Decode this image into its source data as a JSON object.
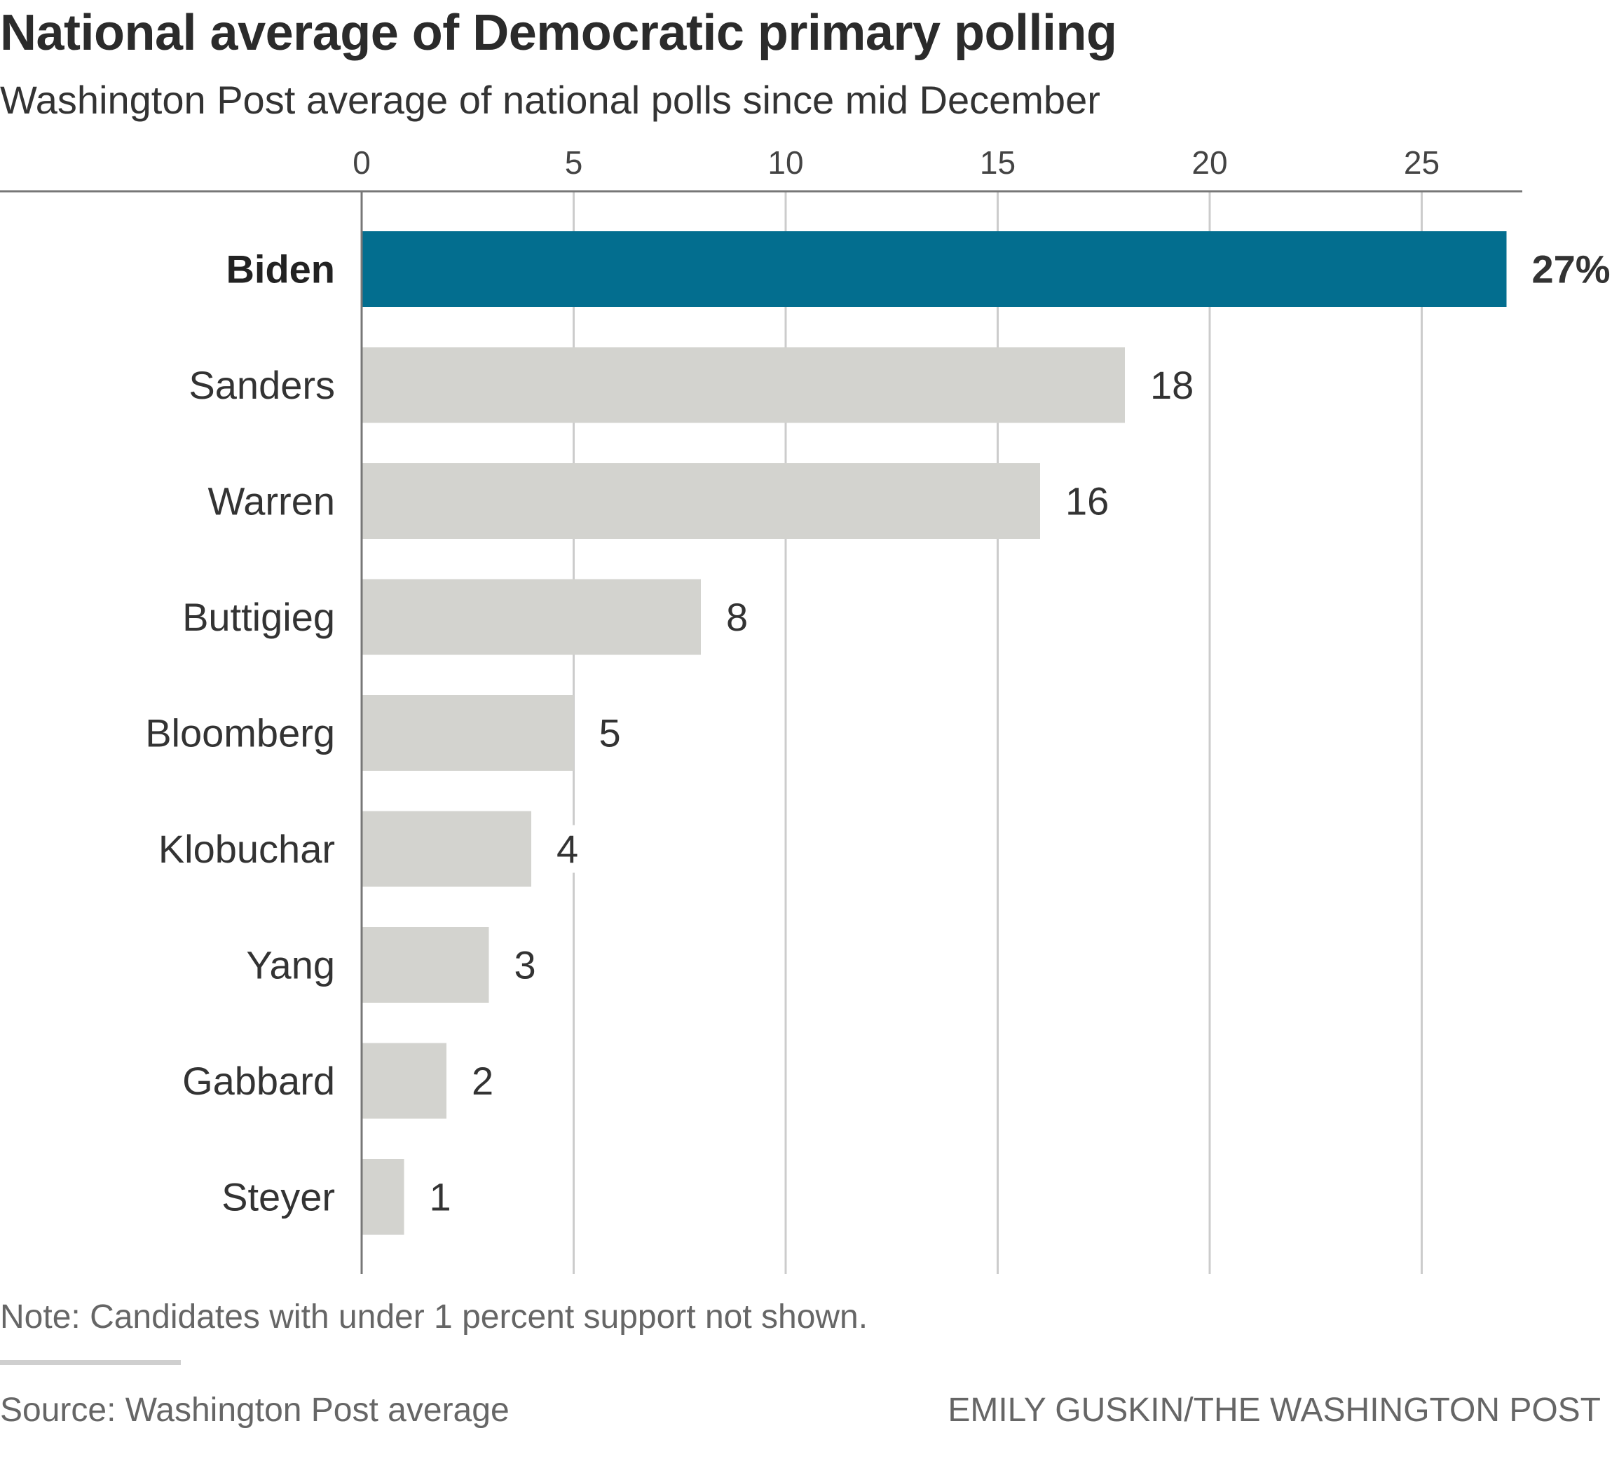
{
  "header": {
    "title": "National average of Democratic primary polling",
    "subtitle": "Washington Post average of national polls since mid December"
  },
  "footer": {
    "note": "Note: Candidates with under 1 percent support not shown.",
    "source": "Source: Washington Post average",
    "credit": "EMILY GUSKIN/THE WASHINGTON POST"
  },
  "colors": {
    "highlight": "#036e8f",
    "bar": "#d3d3cf",
    "grid": "#cccccc",
    "axis": "#777777"
  },
  "chart_data": {
    "type": "bar",
    "orientation": "horizontal",
    "title": "National average of Democratic primary polling",
    "subtitle": "Washington Post average of national polls since mid December",
    "categories": [
      "Biden",
      "Sanders",
      "Warren",
      "Buttigieg",
      "Bloomberg",
      "Klobuchar",
      "Yang",
      "Gabbard",
      "Steyer"
    ],
    "values": [
      27,
      18,
      16,
      8,
      5,
      4,
      3,
      2,
      1
    ],
    "value_labels": [
      "27%",
      "18",
      "16",
      "8",
      "5",
      "4",
      "3",
      "2",
      "1"
    ],
    "highlighted": [
      "Biden"
    ],
    "x_ticks": [
      0,
      5,
      10,
      15,
      20,
      25
    ],
    "tick_labels": [
      "0",
      "5",
      "10",
      "15",
      "20",
      "25"
    ],
    "xlim": [
      0,
      27.5
    ],
    "axis_position": "top",
    "grid": true,
    "legend": "none"
  }
}
